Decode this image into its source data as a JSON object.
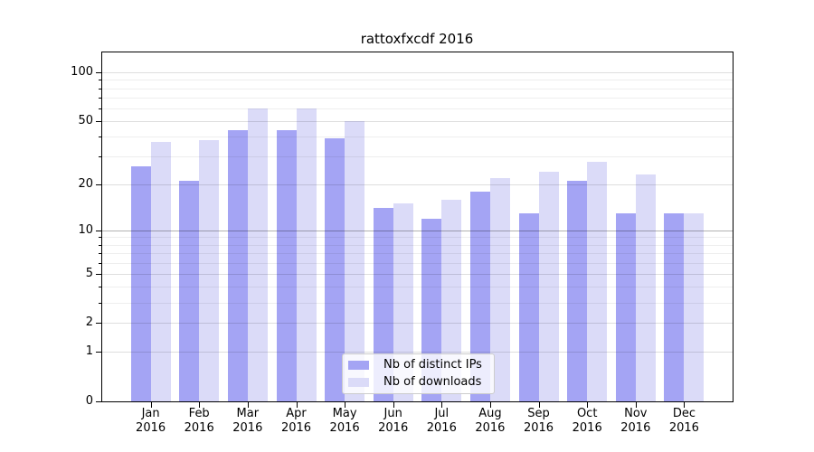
{
  "title": "rattoxfxcdf 2016",
  "chart_data": {
    "type": "bar",
    "title": "rattoxfxcdf 2016",
    "categories": [
      "Jan",
      "Feb",
      "Mar",
      "Apr",
      "May",
      "Jun",
      "Jul",
      "Aug",
      "Sep",
      "Oct",
      "Nov",
      "Dec"
    ],
    "category_year": "2016",
    "series": [
      {
        "name": "Nb of distinct IPs",
        "color": "#a4a4f4",
        "values": [
          26,
          21,
          44,
          44,
          39,
          14,
          12,
          18,
          13,
          21,
          13,
          13
        ]
      },
      {
        "name": "Nb of downloads",
        "color": "#dbdbf8",
        "values": [
          37,
          38,
          60,
          60,
          50,
          15,
          16,
          22,
          24,
          28,
          23,
          13
        ]
      }
    ],
    "yscale": "log1p",
    "ylim": [
      0,
      132.6
    ],
    "yticks": [
      0,
      1,
      2,
      5,
      10,
      20,
      50,
      100
    ],
    "minor_yticks": [
      3,
      4,
      6,
      7,
      8,
      9,
      30,
      40,
      60,
      70,
      80,
      90
    ],
    "emphasized_gridline": 10,
    "grid": true,
    "legend_position": "lower center",
    "colors": {
      "major_grid": "rgba(0,0,0,0.13)",
      "minor_grid": "rgba(0,0,0,0.065)",
      "emphasis_grid": "rgba(0,0,0,0.30)",
      "axis": "#000000",
      "text": "#000000",
      "background": "#ffffff"
    }
  },
  "legend": {
    "items": [
      "Nb of distinct IPs",
      "Nb of downloads"
    ]
  }
}
